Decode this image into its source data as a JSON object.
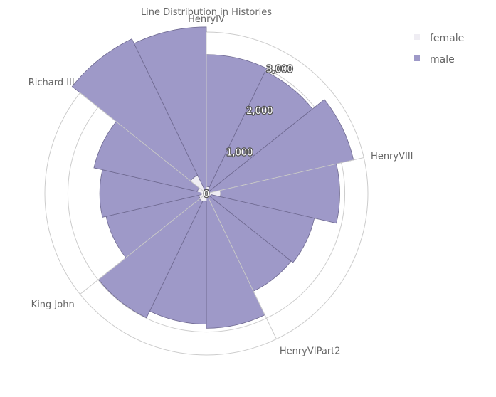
{
  "chart_data": {
    "type": "polar-stacked-bar",
    "title": "Line Distribution in Histories",
    "categories": [
      "HenryIV",
      "",
      "",
      "HenryVIII",
      "",
      "",
      "HenryVIPart2",
      "",
      "",
      "King John",
      "",
      "",
      "Richard III",
      ""
    ],
    "series": [
      {
        "name": "female",
        "color": "#efedf3",
        "values": [
          150,
          80,
          70,
          310,
          100,
          90,
          60,
          170,
          190,
          170,
          110,
          200,
          440,
          90
        ]
      },
      {
        "name": "male",
        "color": "#9e99c8",
        "values": [
          2860,
          2860,
          3200,
          2580,
          2300,
          2260,
          2860,
          2660,
          2800,
          2060,
          2200,
          2300,
          3280,
          3520
        ]
      }
    ],
    "radial_ticks": [
      "0",
      "1,000",
      "2,000",
      "3,000"
    ],
    "radial_tick_values": [
      0,
      1000,
      2000,
      3000
    ],
    "rmax": 3500,
    "legend_position": "top-right"
  }
}
